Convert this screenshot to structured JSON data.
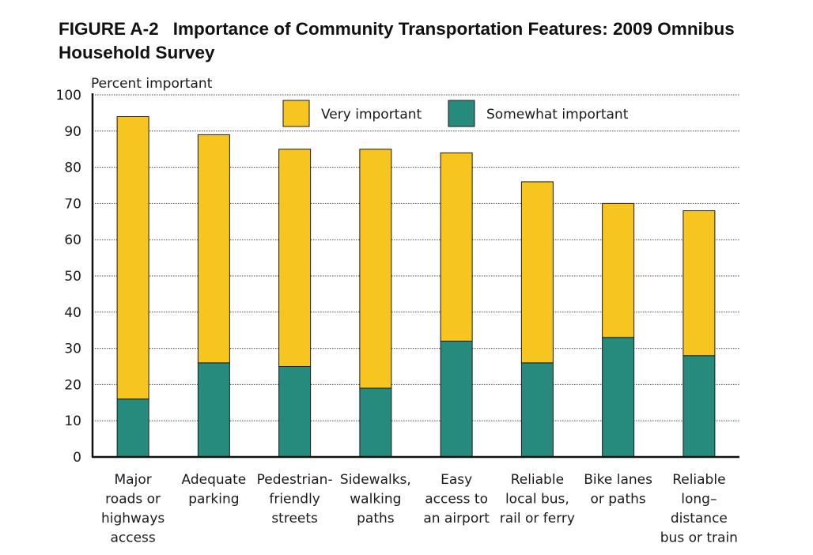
{
  "figure": {
    "label": "FIGURE A-2",
    "title": "Importance of Community Transportation Features: 2009 Omnibus Household Survey"
  },
  "colors": {
    "very_important": "#f7c520",
    "somewhat_important": "#268a7d",
    "outline": "#1a1a1a"
  },
  "chart_data": {
    "type": "bar",
    "stacked": true,
    "ylabel": "Percent important",
    "xlabel": "",
    "ylim": [
      0,
      100
    ],
    "yticks": [
      0,
      10,
      20,
      30,
      40,
      50,
      60,
      70,
      80,
      90,
      100
    ],
    "grid": true,
    "legend_position": "top-center",
    "categories": [
      [
        "Major",
        "roads or",
        "highways",
        "access"
      ],
      [
        "Adequate",
        "parking"
      ],
      [
        "Pedestrian-",
        "friendly",
        "streets"
      ],
      [
        "Sidewalks,",
        "walking",
        "paths"
      ],
      [
        "Easy",
        "access to",
        "an airport"
      ],
      [
        "Reliable",
        "local bus,",
        "rail or ferry"
      ],
      [
        "Bike lanes",
        "or paths"
      ],
      [
        "Reliable",
        "long–",
        "distance",
        "bus or train"
      ]
    ],
    "series": [
      {
        "name": "Somewhat important",
        "values": [
          16,
          26,
          25,
          19,
          32,
          26,
          33,
          28
        ]
      },
      {
        "name": "Very important",
        "values": [
          78,
          63,
          60,
          66,
          52,
          50,
          37,
          40
        ]
      }
    ]
  }
}
